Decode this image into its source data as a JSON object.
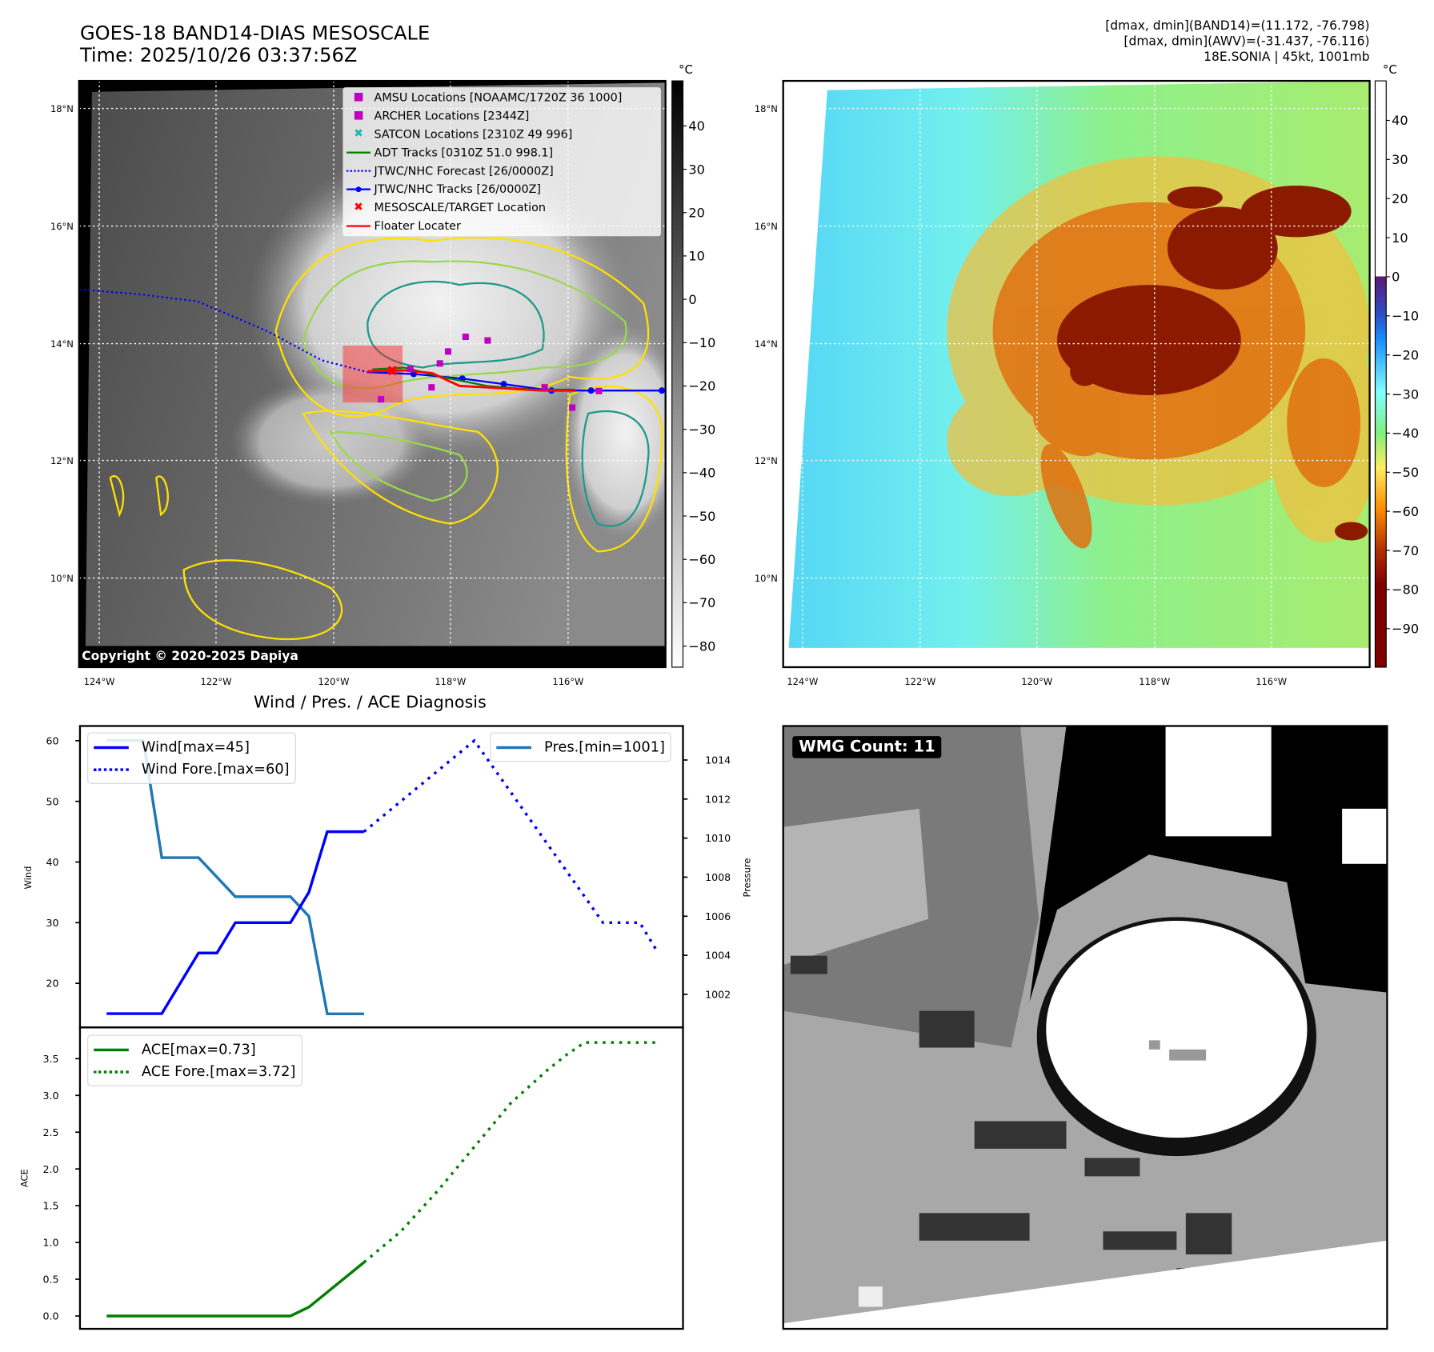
{
  "header": {
    "title": "GOES-18 BAND14-DIAS MESOSCALE",
    "time": "Time: 2025/10/26 03:37:56Z",
    "stats": [
      "[dmax, dmin](BAND14)=(11.172, -76.798)",
      "[dmax, dmin](AWV)=(-31.437, -76.116)",
      "18E.SONIA | 45kt, 1001mb"
    ]
  },
  "maps": {
    "lat_labels": [
      "18°N",
      "16°N",
      "14°N",
      "12°N",
      "10°N"
    ],
    "lon_labels": [
      "124°W",
      "122°W",
      "120°W",
      "118°W",
      "116°W"
    ],
    "unit": "°C",
    "copyright": "Copyright © 2020-2025 Dapiya",
    "left_colorbar_ticks": [
      "40",
      "30",
      "20",
      "10",
      "0",
      "−10",
      "−20",
      "−30",
      "−40",
      "−50",
      "−60",
      "−70",
      "−80"
    ],
    "right_colorbar_ticks": [
      "40",
      "30",
      "20",
      "10",
      "0",
      "−10",
      "−20",
      "−30",
      "−40",
      "−50",
      "−60",
      "−70",
      "−80",
      "−90"
    ],
    "legend": [
      {
        "label": "AMSU Locations [NOAAMC/1720Z 36 1000]",
        "marker": "■",
        "color": "#c000c0"
      },
      {
        "label": "ARCHER Locations [2344Z]",
        "marker": "■",
        "color": "#c000c0"
      },
      {
        "label": "SATCON Locations [2310Z 49 996]",
        "marker": "✖",
        "color": "#17b8b8"
      },
      {
        "label": "ADT Tracks [0310Z 51.0 998.1]",
        "marker": "line",
        "color": "#008000"
      },
      {
        "label": "JTWC/NHC Forecast [26/0000Z]",
        "marker": "dotted",
        "color": "#0000ff"
      },
      {
        "label": "JTWC/NHC Tracks [26/0000Z]",
        "marker": "line-dot",
        "color": "#0000ff"
      },
      {
        "label": "MESOSCALE/TARGET Location",
        "marker": "✖",
        "color": "#ff0000"
      },
      {
        "label": "Floater Locater",
        "marker": "line",
        "color": "#ff0000"
      }
    ]
  },
  "wmg": {
    "label": "WMG Count: 11"
  },
  "chart_data": [
    {
      "type": "line",
      "title": "Wind / Pres. / ACE Diagnosis",
      "ylabel": "Wind",
      "y2label": "Pressure",
      "ylim": [
        12.7,
        62.4
      ],
      "y2lim": [
        1000.6,
        1015.7
      ],
      "yticks": [
        "20",
        "30",
        "40",
        "50",
        "60"
      ],
      "y2ticks": [
        "1002",
        "1004",
        "1006",
        "1008",
        "1010",
        "1012",
        "1014"
      ],
      "series": [
        {
          "name": "Wind[max=45]",
          "color": "#0000ff",
          "style": "solid",
          "x": [
            0,
            3,
            5,
            6,
            7,
            10,
            11,
            12,
            14
          ],
          "y": [
            15,
            15,
            25,
            25,
            30,
            30,
            35,
            45,
            45
          ]
        },
        {
          "name": "Wind Fore.[max=60]",
          "color": "#0000ff",
          "style": "dotted",
          "x": [
            14,
            20,
            27,
            29,
            30
          ],
          "y": [
            45,
            60,
            30,
            30,
            25
          ]
        },
        {
          "name": "Pres.[min=1001]",
          "color": "#1f77b4",
          "style": "solid",
          "axis": "right",
          "x": [
            0,
            2,
            3,
            5,
            7,
            10,
            11,
            12,
            14
          ],
          "y": [
            1015,
            1015,
            1009,
            1009,
            1007,
            1007,
            1006,
            1001,
            1001
          ]
        }
      ]
    },
    {
      "type": "line",
      "ylabel": "ACE",
      "ylim": [
        -0.15,
        3.9
      ],
      "yticks": [
        "0.0",
        "0.5",
        "1.0",
        "1.5",
        "2.0",
        "2.5",
        "3.0",
        "3.5"
      ],
      "series": [
        {
          "name": "ACE[max=0.73]",
          "color": "#008000",
          "style": "solid",
          "x": [
            0,
            10,
            11,
            14
          ],
          "y": [
            0,
            0,
            0.12,
            0.73
          ]
        },
        {
          "name": "ACE Fore.[max=3.72]",
          "color": "#008000",
          "style": "dotted",
          "x": [
            14,
            16,
            18,
            20,
            22,
            24,
            25,
            26,
            30
          ],
          "y": [
            0.73,
            1.15,
            1.7,
            2.3,
            2.9,
            3.35,
            3.55,
            3.72,
            3.72
          ]
        }
      ]
    }
  ]
}
